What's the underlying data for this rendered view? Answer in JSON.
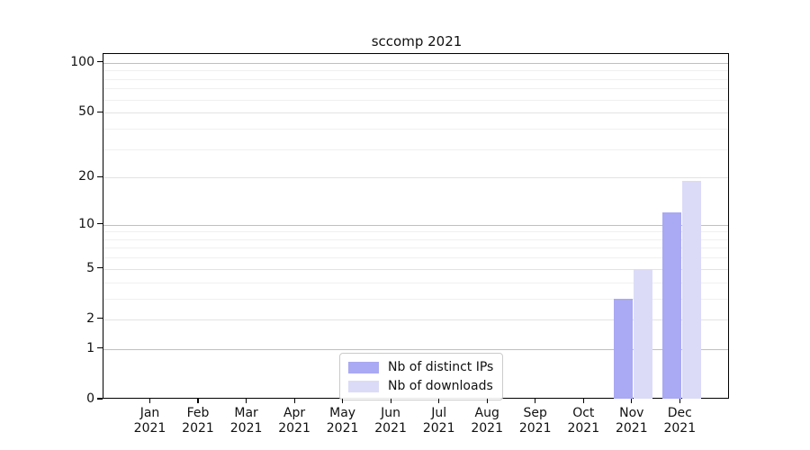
{
  "chart_data": {
    "type": "bar",
    "title": "sccomp 2021",
    "categories": [
      "Jan",
      "Feb",
      "Mar",
      "Apr",
      "May",
      "Jun",
      "Jul",
      "Aug",
      "Sep",
      "Oct",
      "Nov",
      "Dec"
    ],
    "category_year": "2021",
    "series": [
      {
        "name": "Nb of distinct IPs",
        "color": "#a9a9f4",
        "values": [
          0,
          0,
          0,
          0,
          0,
          0,
          0,
          0,
          0,
          0,
          3,
          12
        ]
      },
      {
        "name": "Nb of downloads",
        "color": "#dbdbf8",
        "values": [
          0,
          0,
          0,
          0,
          0,
          0,
          0,
          0,
          0,
          0,
          5,
          19
        ]
      }
    ],
    "xlabel": "",
    "ylabel": "",
    "y_ticks": [
      0,
      1,
      2,
      5,
      10,
      20,
      50,
      100
    ],
    "y_minor_gridlines": [
      3,
      4,
      6,
      7,
      8,
      9,
      30,
      40,
      60,
      70,
      80,
      90
    ],
    "y_major_gridlines": [
      1,
      10,
      100
    ],
    "y_scale": "log(1+y)",
    "ylim": [
      0,
      113
    ],
    "grid": true,
    "legend_position": "lower center"
  },
  "colors": {
    "bar_distinct_ips": "#a9a9f4",
    "bar_downloads": "#dbdbf8",
    "grid_major": "#c0c0c0",
    "grid_minor": "#f0f0f0"
  }
}
